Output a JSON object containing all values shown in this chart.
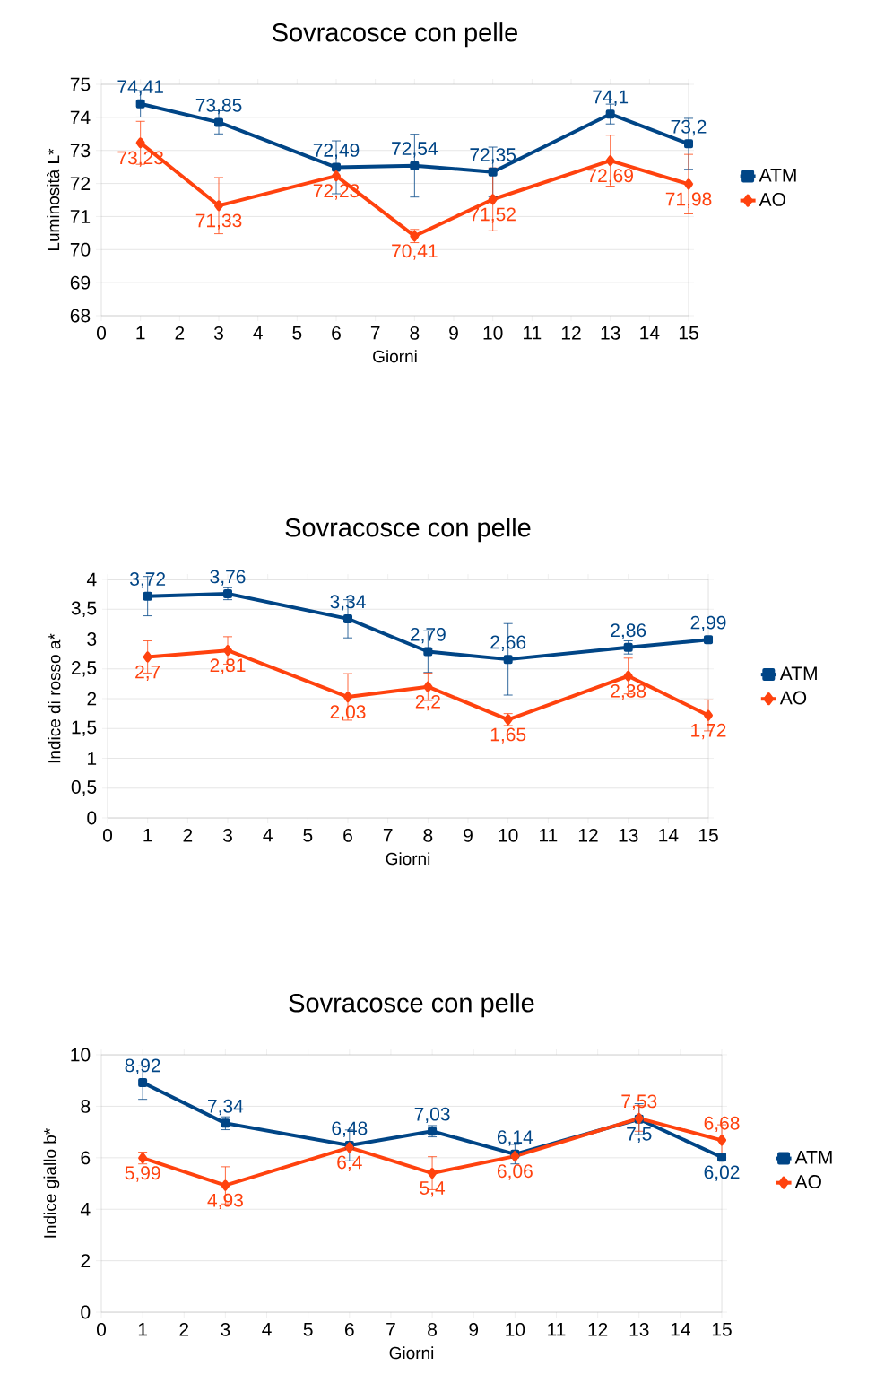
{
  "chart_data": [
    {
      "type": "line",
      "title": "Sovracosce con pelle",
      "xlabel": "Giorni",
      "ylabel": "Luminosità L*",
      "x": [
        1,
        3,
        6,
        8,
        10,
        13,
        15
      ],
      "xlim": [
        0,
        15
      ],
      "xticks": [
        0,
        1,
        2,
        3,
        4,
        5,
        6,
        7,
        8,
        9,
        10,
        11,
        12,
        13,
        14,
        15
      ],
      "ylim": [
        68,
        75
      ],
      "yticks": [
        68,
        69,
        70,
        71,
        72,
        73,
        74,
        75
      ],
      "grid": "y",
      "legend": "right",
      "line_style": "solid",
      "series": [
        {
          "name": "ATM",
          "color": "#004586",
          "marker": "square",
          "values": [
            74.41,
            73.85,
            72.49,
            72.54,
            72.35,
            74.1,
            73.2
          ],
          "errors": [
            0.4,
            0.35,
            0.8,
            0.95,
            0.75,
            0.3,
            0.77
          ],
          "value_labels": [
            "74,41",
            "73,85",
            "72,49",
            "72,54",
            "72,35",
            "74,1",
            "73,2"
          ]
        },
        {
          "name": "AO",
          "color": "#ff420e",
          "marker": "diamond",
          "values": [
            73.23,
            71.33,
            72.23,
            70.41,
            71.52,
            72.69,
            71.98
          ],
          "errors": [
            0.65,
            0.85,
            null,
            0.2,
            0.95,
            0.77,
            0.9
          ],
          "value_labels": [
            "73,23",
            "71,33",
            "72,23",
            "70,41",
            "71,52",
            "72,69",
            "71,98"
          ]
        }
      ]
    },
    {
      "type": "line",
      "title": "Sovracosce con pelle",
      "xlabel": "Giorni",
      "ylabel": "Indice di rosso a*",
      "x": [
        1,
        3,
        6,
        8,
        10,
        13,
        15
      ],
      "xlim": [
        0,
        15
      ],
      "xticks": [
        0,
        1,
        2,
        3,
        4,
        5,
        6,
        7,
        8,
        9,
        10,
        11,
        12,
        13,
        14,
        15
      ],
      "ylim": [
        0,
        4
      ],
      "yticks": [
        0,
        {
          "value": 0.5,
          "label": "0,5"
        },
        1,
        {
          "value": 1.5,
          "label": "1,5"
        },
        2,
        {
          "value": 2.5,
          "label": "2,5"
        },
        3,
        {
          "value": 3.5,
          "label": "3,5"
        },
        4
      ],
      "grid": "y",
      "legend": "right",
      "line_style": "solid",
      "series": [
        {
          "name": "ATM",
          "color": "#004586",
          "marker": "square",
          "values": [
            3.72,
            3.76,
            3.34,
            2.79,
            2.66,
            2.86,
            2.99
          ],
          "errors": [
            0.33,
            0.1,
            0.32,
            0.35,
            0.6,
            0.11,
            0.05
          ],
          "value_labels": [
            "3,72",
            "3,76",
            "3,34",
            "2,79",
            "2,66",
            "2,86",
            "2,99"
          ]
        },
        {
          "name": "AO",
          "color": "#ff420e",
          "marker": "diamond",
          "values": [
            2.7,
            2.81,
            2.03,
            2.2,
            1.65,
            2.38,
            1.72
          ],
          "errors": [
            0.27,
            0.23,
            0.39,
            0.23,
            0.1,
            0.3,
            0.26
          ],
          "value_labels": [
            "2,7",
            "2,81",
            "2,03",
            "2,2",
            "1,65",
            "2,38",
            "1,72"
          ]
        }
      ]
    },
    {
      "type": "line",
      "title": "Sovracosce con pelle",
      "xlabel": "Giorni",
      "ylabel": "Indice giallo b*",
      "x": [
        1,
        3,
        6,
        8,
        10,
        13,
        15
      ],
      "xlim": [
        0,
        15
      ],
      "xticks": [
        0,
        1,
        2,
        3,
        4,
        5,
        6,
        7,
        8,
        9,
        10,
        11,
        12,
        13,
        14,
        15
      ],
      "ylim": [
        0,
        10
      ],
      "yticks": [
        0,
        2,
        4,
        6,
        8,
        10
      ],
      "grid": "y",
      "legend": "right",
      "line_style": "solid",
      "series": [
        {
          "name": "ATM",
          "color": "#004586",
          "marker": "square",
          "values": [
            8.92,
            7.34,
            6.48,
            7.03,
            6.14,
            7.5,
            6.02
          ],
          "errors": [
            0.65,
            0.25,
            0.6,
            0.22,
            0.38,
            0.6,
            0.13
          ],
          "value_labels": [
            "8,92",
            "7,34",
            "6,48",
            "7,03",
            "6,14",
            "7,5",
            "6,02"
          ]
        },
        {
          "name": "AO",
          "color": "#ff420e",
          "marker": "diamond",
          "values": [
            5.99,
            4.93,
            6.4,
            5.4,
            6.06,
            7.53,
            6.68
          ],
          "errors": [
            0.23,
            0.72,
            null,
            0.64,
            null,
            0.5,
            0.6
          ],
          "value_labels": [
            "5,99",
            "4,93",
            "6,4",
            "5,4",
            "6,06",
            "7,53",
            "6,68"
          ]
        }
      ]
    }
  ]
}
